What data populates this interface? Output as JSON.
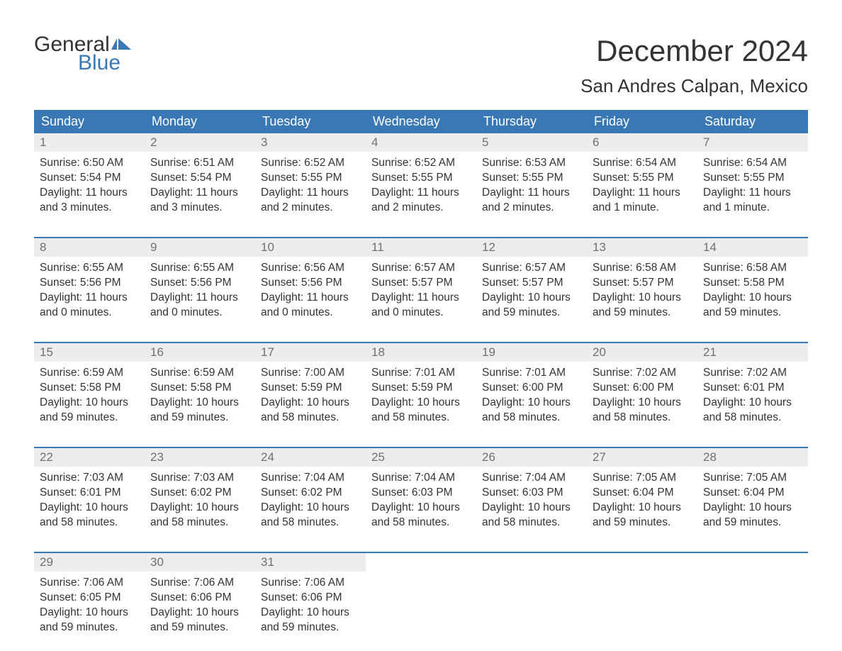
{
  "logo": {
    "word1": "General",
    "word2": "Blue",
    "flag_color": "#3a78b5"
  },
  "title": "December 2024",
  "location": "San Andres Calpan, Mexico",
  "header_bg": "#3a78b5",
  "header_fg": "#ffffff",
  "daynum_bg": "#ededed",
  "daynum_fg": "#707070",
  "body_color": "#333333",
  "weekdays": [
    "Sunday",
    "Monday",
    "Tuesday",
    "Wednesday",
    "Thursday",
    "Friday",
    "Saturday"
  ],
  "weeks": [
    [
      {
        "n": "1",
        "sunrise": "6:50 AM",
        "sunset": "5:54 PM",
        "daylight": "11 hours and 3 minutes."
      },
      {
        "n": "2",
        "sunrise": "6:51 AM",
        "sunset": "5:54 PM",
        "daylight": "11 hours and 3 minutes."
      },
      {
        "n": "3",
        "sunrise": "6:52 AM",
        "sunset": "5:55 PM",
        "daylight": "11 hours and 2 minutes."
      },
      {
        "n": "4",
        "sunrise": "6:52 AM",
        "sunset": "5:55 PM",
        "daylight": "11 hours and 2 minutes."
      },
      {
        "n": "5",
        "sunrise": "6:53 AM",
        "sunset": "5:55 PM",
        "daylight": "11 hours and 2 minutes."
      },
      {
        "n": "6",
        "sunrise": "6:54 AM",
        "sunset": "5:55 PM",
        "daylight": "11 hours and 1 minute."
      },
      {
        "n": "7",
        "sunrise": "6:54 AM",
        "sunset": "5:55 PM",
        "daylight": "11 hours and 1 minute."
      }
    ],
    [
      {
        "n": "8",
        "sunrise": "6:55 AM",
        "sunset": "5:56 PM",
        "daylight": "11 hours and 0 minutes."
      },
      {
        "n": "9",
        "sunrise": "6:55 AM",
        "sunset": "5:56 PM",
        "daylight": "11 hours and 0 minutes."
      },
      {
        "n": "10",
        "sunrise": "6:56 AM",
        "sunset": "5:56 PM",
        "daylight": "11 hours and 0 minutes."
      },
      {
        "n": "11",
        "sunrise": "6:57 AM",
        "sunset": "5:57 PM",
        "daylight": "11 hours and 0 minutes."
      },
      {
        "n": "12",
        "sunrise": "6:57 AM",
        "sunset": "5:57 PM",
        "daylight": "10 hours and 59 minutes."
      },
      {
        "n": "13",
        "sunrise": "6:58 AM",
        "sunset": "5:57 PM",
        "daylight": "10 hours and 59 minutes."
      },
      {
        "n": "14",
        "sunrise": "6:58 AM",
        "sunset": "5:58 PM",
        "daylight": "10 hours and 59 minutes."
      }
    ],
    [
      {
        "n": "15",
        "sunrise": "6:59 AM",
        "sunset": "5:58 PM",
        "daylight": "10 hours and 59 minutes."
      },
      {
        "n": "16",
        "sunrise": "6:59 AM",
        "sunset": "5:58 PM",
        "daylight": "10 hours and 59 minutes."
      },
      {
        "n": "17",
        "sunrise": "7:00 AM",
        "sunset": "5:59 PM",
        "daylight": "10 hours and 58 minutes."
      },
      {
        "n": "18",
        "sunrise": "7:01 AM",
        "sunset": "5:59 PM",
        "daylight": "10 hours and 58 minutes."
      },
      {
        "n": "19",
        "sunrise": "7:01 AM",
        "sunset": "6:00 PM",
        "daylight": "10 hours and 58 minutes."
      },
      {
        "n": "20",
        "sunrise": "7:02 AM",
        "sunset": "6:00 PM",
        "daylight": "10 hours and 58 minutes."
      },
      {
        "n": "21",
        "sunrise": "7:02 AM",
        "sunset": "6:01 PM",
        "daylight": "10 hours and 58 minutes."
      }
    ],
    [
      {
        "n": "22",
        "sunrise": "7:03 AM",
        "sunset": "6:01 PM",
        "daylight": "10 hours and 58 minutes."
      },
      {
        "n": "23",
        "sunrise": "7:03 AM",
        "sunset": "6:02 PM",
        "daylight": "10 hours and 58 minutes."
      },
      {
        "n": "24",
        "sunrise": "7:04 AM",
        "sunset": "6:02 PM",
        "daylight": "10 hours and 58 minutes."
      },
      {
        "n": "25",
        "sunrise": "7:04 AM",
        "sunset": "6:03 PM",
        "daylight": "10 hours and 58 minutes."
      },
      {
        "n": "26",
        "sunrise": "7:04 AM",
        "sunset": "6:03 PM",
        "daylight": "10 hours and 58 minutes."
      },
      {
        "n": "27",
        "sunrise": "7:05 AM",
        "sunset": "6:04 PM",
        "daylight": "10 hours and 59 minutes."
      },
      {
        "n": "28",
        "sunrise": "7:05 AM",
        "sunset": "6:04 PM",
        "daylight": "10 hours and 59 minutes."
      }
    ],
    [
      {
        "n": "29",
        "sunrise": "7:06 AM",
        "sunset": "6:05 PM",
        "daylight": "10 hours and 59 minutes."
      },
      {
        "n": "30",
        "sunrise": "7:06 AM",
        "sunset": "6:06 PM",
        "daylight": "10 hours and 59 minutes."
      },
      {
        "n": "31",
        "sunrise": "7:06 AM",
        "sunset": "6:06 PM",
        "daylight": "10 hours and 59 minutes."
      },
      null,
      null,
      null,
      null
    ]
  ],
  "labels": {
    "sunrise": "Sunrise: ",
    "sunset": "Sunset: ",
    "daylight": "Daylight: "
  }
}
